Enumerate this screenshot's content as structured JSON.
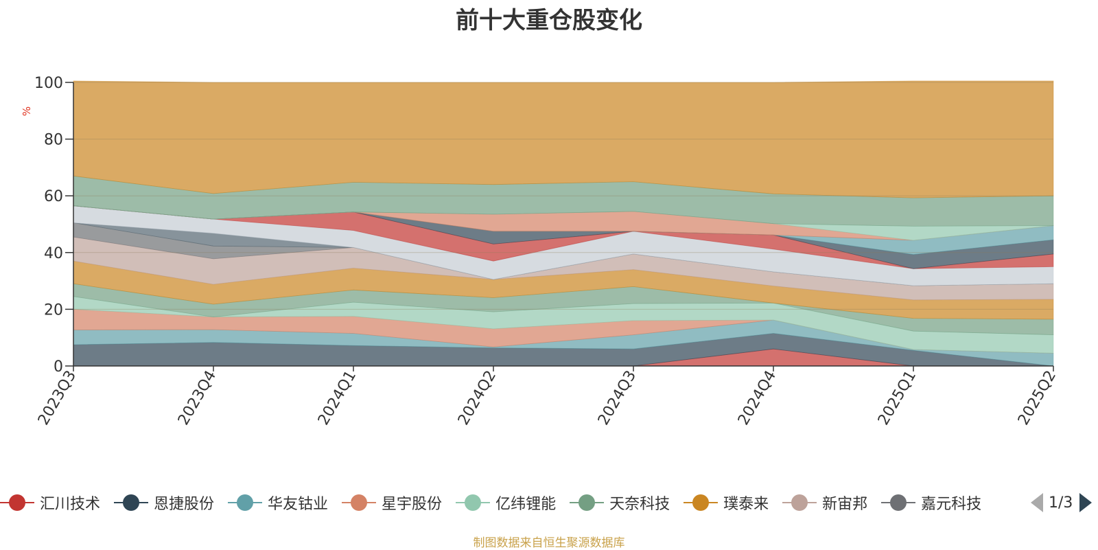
{
  "title": "前十大重仓股变化",
  "footer": "制图数据来自恒生聚源数据库",
  "pager": "1/3",
  "chart_data": {
    "type": "area",
    "stacked": true,
    "ylabel": "%",
    "ylim": [
      0,
      100
    ],
    "yticks": [
      0,
      20,
      40,
      60,
      80,
      100
    ],
    "x": [
      "2023Q3",
      "2023Q4",
      "2024Q1",
      "2024Q2",
      "2024Q3",
      "2024Q4",
      "2025Q1",
      "2025Q2"
    ],
    "grid": true,
    "series": [
      {
        "name": "汇川技术",
        "color": "#c23531",
        "values": [
          0,
          0,
          0,
          0,
          0,
          6,
          0,
          0
        ]
      },
      {
        "name": "恩捷股份",
        "color": "#2f4554",
        "values": [
          7.5,
          8.3,
          7.2,
          6.4,
          6.0,
          5.5,
          5.5,
          0
        ]
      },
      {
        "name": "华友钴业",
        "color": "#61a0a8",
        "values": [
          5.2,
          4.5,
          4.3,
          0.3,
          5.0,
          4.7,
          0.3,
          4.5
        ]
      },
      {
        "name": "星宇股份",
        "color": "#d48265",
        "values": [
          7.3,
          4.5,
          6.0,
          6.4,
          5.0,
          0,
          0,
          0
        ]
      },
      {
        "name": "亿纬锂能",
        "color": "#91c7ae",
        "values": [
          4.5,
          0,
          5.0,
          6.0,
          6.0,
          6.0,
          6.5,
          6.5
        ]
      },
      {
        "name": "天奈科技",
        "color": "#749f83",
        "values": [
          4.5,
          4.5,
          4.3,
          5.0,
          6.0,
          0,
          4.5,
          5.5
        ]
      },
      {
        "name": "璞泰来",
        "color": "#ca8622",
        "values": [
          8.0,
          7.0,
          7.7,
          6.4,
          6.0,
          6.0,
          6.5,
          7.0
        ]
      },
      {
        "name": "新宙邦",
        "color": "#bda29a",
        "values": [
          8.5,
          9.0,
          7.3,
          0,
          5.5,
          5.0,
          5.0,
          5.5
        ]
      },
      {
        "name": "嘉元科技",
        "color": "#6e7074",
        "values": [
          5.0,
          4.5,
          0,
          0,
          0,
          0,
          0,
          0
        ]
      },
      {
        "name": "",
        "color": "#546570",
        "values": [
          0,
          4.5,
          0,
          0,
          0,
          0,
          0,
          0
        ]
      },
      {
        "name": "",
        "color": "#c4ccd3",
        "values": [
          6.0,
          5.0,
          6.0,
          6.5,
          8.0,
          8.0,
          6.0,
          6.0
        ]
      },
      {
        "name": "",
        "color": "#c23531",
        "values": [
          0,
          0,
          6.5,
          6.0,
          0,
          5.0,
          0,
          4.5
        ]
      },
      {
        "name": "",
        "color": "#2f4554",
        "values": [
          0,
          0,
          0,
          4.5,
          0,
          0,
          5.0,
          5.0
        ]
      },
      {
        "name": "",
        "color": "#61a0a8",
        "values": [
          0,
          0,
          0,
          0,
          0,
          0,
          5.0,
          5.0
        ]
      },
      {
        "name": "",
        "color": "#d48265",
        "values": [
          0,
          0,
          0,
          6.0,
          7.0,
          4.0,
          0,
          0
        ]
      },
      {
        "name": "",
        "color": "#91c7ae",
        "values": [
          0,
          0,
          0,
          0,
          0,
          0,
          5.0,
          0
        ]
      },
      {
        "name": "",
        "color": "#749f83",
        "values": [
          10.5,
          9.0,
          10.5,
          10.5,
          10.5,
          10.5,
          10.0,
          10.5
        ]
      },
      {
        "name": "",
        "color": "#ca8622",
        "values": [
          33.5,
          39.2,
          35.2,
          36.0,
          35.0,
          39.3,
          41.2,
          40.5
        ]
      }
    ]
  }
}
